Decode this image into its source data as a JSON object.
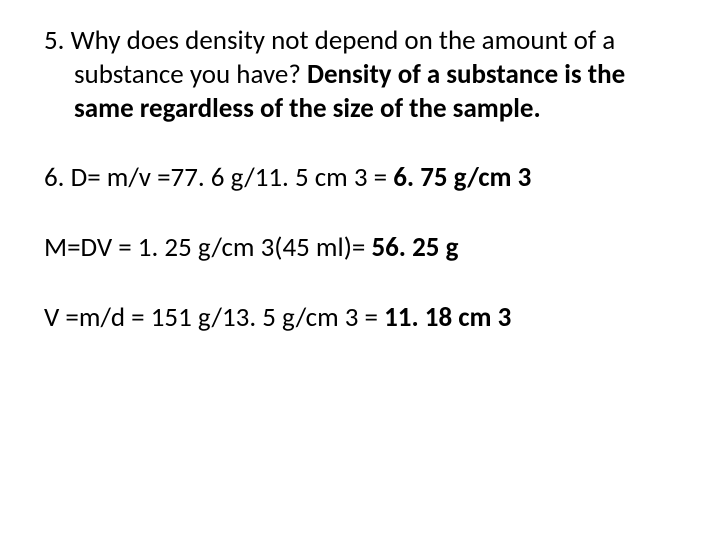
{
  "q5": {
    "number": "5. ",
    "question": "Why does density not depend on the amount of a substance  you have? ",
    "answer": "Density of a substance is the same regardless of the size of the sample."
  },
  "q6": {
    "number": "6. ",
    "formula": "D= m/v  =77. 6 g/11. 5 cm 3 = ",
    "result": "6. 75 g/cm 3"
  },
  "mass": {
    "formula": "M=DV = 1. 25 g/cm 3(45 ml)= ",
    "result": "56. 25 g"
  },
  "volume": {
    "formula": "V =m/d = 151 g/13. 5 g/cm 3 = ",
    "result": "11. 18 cm 3"
  }
}
